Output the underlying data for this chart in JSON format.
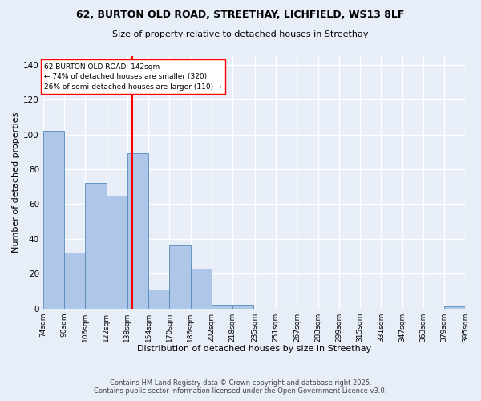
{
  "title_line1": "62, BURTON OLD ROAD, STREETHAY, LICHFIELD, WS13 8LF",
  "title_line2": "Size of property relative to detached houses in Streethay",
  "xlabel": "Distribution of detached houses by size in Streethay",
  "ylabel": "Number of detached properties",
  "bar_edges": [
    74,
    90,
    106,
    122,
    138,
    154,
    170,
    186,
    202,
    218,
    235,
    251,
    267,
    283,
    299,
    315,
    331,
    347,
    363,
    379,
    395
  ],
  "bar_heights": [
    102,
    32,
    72,
    65,
    89,
    11,
    36,
    23,
    2,
    2,
    0,
    0,
    0,
    0,
    0,
    0,
    0,
    0,
    0,
    1
  ],
  "bar_color": "#aec6e8",
  "bar_edge_color": "#5588bb",
  "background_color": "#e8eef8",
  "grid_color": "#ffffff",
  "vline_x": 142,
  "vline_color": "red",
  "annotation_text": "62 BURTON OLD ROAD: 142sqm\n← 74% of detached houses are smaller (320)\n26% of semi-detached houses are larger (110) →",
  "annotation_box_color": "white",
  "annotation_box_edge": "red",
  "ylim": [
    0,
    145
  ],
  "yticks": [
    0,
    20,
    40,
    60,
    80,
    100,
    120,
    140
  ],
  "tick_labels": [
    "74sqm",
    "90sqm",
    "106sqm",
    "122sqm",
    "138sqm",
    "154sqm",
    "170sqm",
    "186sqm",
    "202sqm",
    "218sqm",
    "235sqm",
    "251sqm",
    "267sqm",
    "283sqm",
    "299sqm",
    "315sqm",
    "331sqm",
    "347sqm",
    "363sqm",
    "379sqm",
    "395sqm"
  ],
  "footer_line1": "Contains HM Land Registry data © Crown copyright and database right 2025.",
  "footer_line2": "Contains public sector information licensed under the Open Government Licence v3.0."
}
